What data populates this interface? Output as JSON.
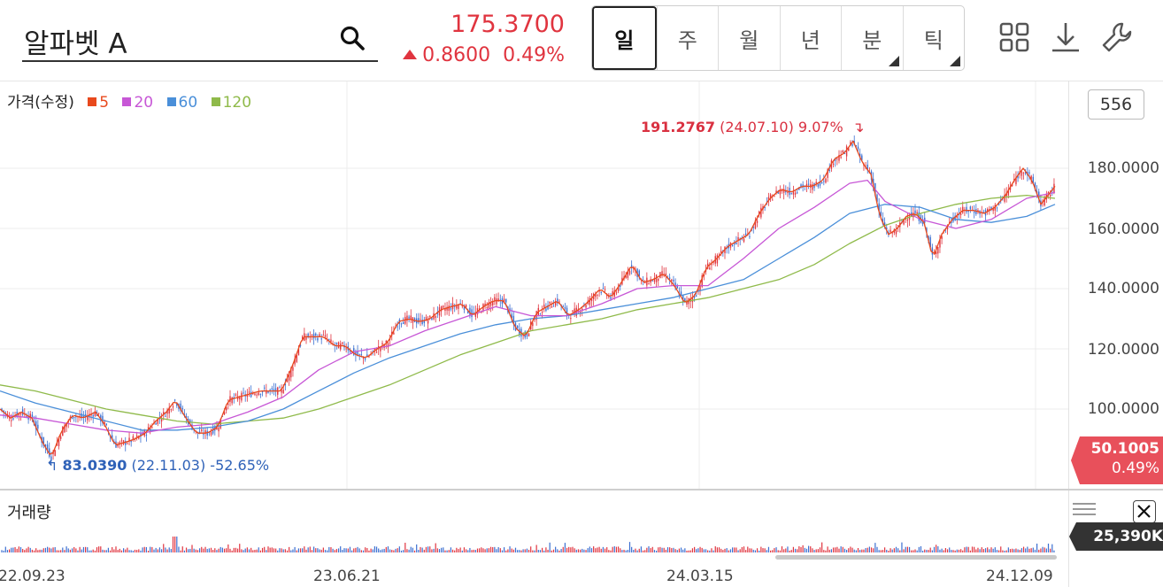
{
  "header": {
    "stock_name": "알파벳 A",
    "price": "175.3700",
    "change": "0.8600",
    "change_pct": "0.49%",
    "up_color": "#e0343f",
    "tabs": [
      {
        "label": "일",
        "active": true,
        "submenu": false
      },
      {
        "label": "주",
        "active": false,
        "submenu": false
      },
      {
        "label": "월",
        "active": false,
        "submenu": false
      },
      {
        "label": "년",
        "active": false,
        "submenu": false
      },
      {
        "label": "분",
        "active": false,
        "submenu": true
      },
      {
        "label": "틱",
        "active": false,
        "submenu": true
      }
    ],
    "tools": [
      "grid-icon",
      "download-icon",
      "wrench-icon"
    ]
  },
  "legend": {
    "title": "가격(수정)",
    "items": [
      {
        "label": "5",
        "color": "#e8491d"
      },
      {
        "label": "20",
        "color": "#c757d6"
      },
      {
        "label": "60",
        "color": "#4a8fd9"
      },
      {
        "label": "120",
        "color": "#8fba4a"
      }
    ]
  },
  "count_box": "556",
  "current": {
    "value": "50.1005",
    "pct": "0.49%",
    "color": "#e8505b"
  },
  "annotations": {
    "high": {
      "value": "191.2767",
      "detail": "(24.07.10) 9.07%"
    },
    "low": {
      "value": "83.0390",
      "detail": "(22.11.03) -52.65%"
    }
  },
  "volume": {
    "label": "거래량",
    "value": "25,390K"
  },
  "chart_data": {
    "type": "candlestick",
    "y_ticks": [
      "180.0000",
      "160.0000",
      "140.0000",
      "120.0000",
      "100.0000"
    ],
    "ylim": [
      88,
      197
    ],
    "x_ticks": [
      "22.09.23",
      "23.06.21",
      "24.03.15",
      "24.12.09"
    ],
    "grid": true,
    "series": [
      {
        "name": "5",
        "color": "#e8491d"
      },
      {
        "name": "20",
        "color": "#c757d6"
      },
      {
        "name": "60",
        "color": "#4a8fd9"
      },
      {
        "name": "120",
        "color": "#8fba4a"
      }
    ],
    "close_curve": [
      [
        0,
        100
      ],
      [
        12,
        97
      ],
      [
        24,
        99
      ],
      [
        36,
        97
      ],
      [
        48,
        89
      ],
      [
        58,
        84
      ],
      [
        70,
        93
      ],
      [
        82,
        98
      ],
      [
        94,
        97
      ],
      [
        108,
        99
      ],
      [
        118,
        95
      ],
      [
        130,
        88
      ],
      [
        142,
        89
      ],
      [
        152,
        90
      ],
      [
        164,
        92
      ],
      [
        176,
        96
      ],
      [
        188,
        99
      ],
      [
        198,
        103
      ],
      [
        210,
        97
      ],
      [
        222,
        92
      ],
      [
        234,
        92
      ],
      [
        246,
        94
      ],
      [
        258,
        103
      ],
      [
        270,
        104
      ],
      [
        282,
        105
      ],
      [
        294,
        106
      ],
      [
        306,
        106
      ],
      [
        318,
        106
      ],
      [
        330,
        114
      ],
      [
        342,
        124
      ],
      [
        354,
        124
      ],
      [
        366,
        124
      ],
      [
        378,
        121
      ],
      [
        390,
        121
      ],
      [
        402,
        118
      ],
      [
        414,
        117
      ],
      [
        426,
        120
      ],
      [
        438,
        122
      ],
      [
        450,
        129
      ],
      [
        462,
        130
      ],
      [
        474,
        129
      ],
      [
        486,
        130
      ],
      [
        498,
        133
      ],
      [
        510,
        134
      ],
      [
        522,
        135
      ],
      [
        534,
        131
      ],
      [
        546,
        134
      ],
      [
        558,
        136
      ],
      [
        570,
        136
      ],
      [
        582,
        127
      ],
      [
        594,
        124
      ],
      [
        606,
        132
      ],
      [
        618,
        134
      ],
      [
        630,
        136
      ],
      [
        642,
        131
      ],
      [
        654,
        133
      ],
      [
        666,
        136
      ],
      [
        678,
        140
      ],
      [
        690,
        137
      ],
      [
        702,
        142
      ],
      [
        714,
        148
      ],
      [
        726,
        142
      ],
      [
        738,
        143
      ],
      [
        750,
        145
      ],
      [
        762,
        141
      ],
      [
        774,
        135
      ],
      [
        786,
        138
      ],
      [
        798,
        147
      ],
      [
        810,
        150
      ],
      [
        822,
        154
      ],
      [
        834,
        156
      ],
      [
        846,
        158
      ],
      [
        858,
        165
      ],
      [
        870,
        170
      ],
      [
        882,
        173
      ],
      [
        894,
        172
      ],
      [
        906,
        174
      ],
      [
        918,
        174
      ],
      [
        930,
        176
      ],
      [
        942,
        183
      ],
      [
        954,
        185
      ],
      [
        964,
        189
      ],
      [
        974,
        182
      ],
      [
        984,
        178
      ],
      [
        994,
        164
      ],
      [
        1004,
        158
      ],
      [
        1014,
        160
      ],
      [
        1024,
        164
      ],
      [
        1034,
        165
      ],
      [
        1044,
        162
      ],
      [
        1054,
        150
      ],
      [
        1064,
        158
      ],
      [
        1076,
        163
      ],
      [
        1088,
        166
      ],
      [
        1100,
        166
      ],
      [
        1112,
        165
      ],
      [
        1124,
        167
      ],
      [
        1136,
        171
      ],
      [
        1146,
        176
      ],
      [
        1156,
        180
      ],
      [
        1166,
        176
      ],
      [
        1176,
        168
      ],
      [
        1184,
        171
      ],
      [
        1192,
        174
      ]
    ],
    "ma20_curve": [
      [
        0,
        98
      ],
      [
        40,
        97
      ],
      [
        80,
        95
      ],
      [
        120,
        93
      ],
      [
        160,
        92
      ],
      [
        200,
        94
      ],
      [
        240,
        95
      ],
      [
        280,
        99
      ],
      [
        320,
        104
      ],
      [
        360,
        113
      ],
      [
        400,
        119
      ],
      [
        440,
        121
      ],
      [
        480,
        126
      ],
      [
        520,
        130
      ],
      [
        560,
        134
      ],
      [
        600,
        131
      ],
      [
        640,
        131
      ],
      [
        680,
        135
      ],
      [
        720,
        140
      ],
      [
        760,
        141
      ],
      [
        800,
        141
      ],
      [
        840,
        150
      ],
      [
        880,
        160
      ],
      [
        920,
        167
      ],
      [
        960,
        175
      ],
      [
        980,
        176
      ],
      [
        1000,
        169
      ],
      [
        1040,
        163
      ],
      [
        1080,
        160
      ],
      [
        1120,
        163
      ],
      [
        1160,
        170
      ],
      [
        1192,
        172
      ]
    ],
    "ma60_curve": [
      [
        0,
        106
      ],
      [
        40,
        102
      ],
      [
        80,
        99
      ],
      [
        120,
        96
      ],
      [
        160,
        93
      ],
      [
        200,
        93
      ],
      [
        240,
        94
      ],
      [
        280,
        96
      ],
      [
        320,
        100
      ],
      [
        360,
        106
      ],
      [
        400,
        112
      ],
      [
        440,
        117
      ],
      [
        480,
        121
      ],
      [
        520,
        125
      ],
      [
        560,
        128
      ],
      [
        600,
        130
      ],
      [
        640,
        131
      ],
      [
        680,
        133
      ],
      [
        720,
        135
      ],
      [
        760,
        137
      ],
      [
        800,
        140
      ],
      [
        840,
        143
      ],
      [
        880,
        150
      ],
      [
        920,
        157
      ],
      [
        960,
        165
      ],
      [
        1000,
        168
      ],
      [
        1040,
        167
      ],
      [
        1080,
        163
      ],
      [
        1120,
        162
      ],
      [
        1160,
        164
      ],
      [
        1192,
        168
      ]
    ],
    "ma120_curve": [
      [
        0,
        108
      ],
      [
        40,
        106
      ],
      [
        80,
        103
      ],
      [
        120,
        100
      ],
      [
        160,
        98
      ],
      [
        200,
        96
      ],
      [
        240,
        95
      ],
      [
        280,
        96
      ],
      [
        320,
        97
      ],
      [
        360,
        100
      ],
      [
        400,
        104
      ],
      [
        440,
        108
      ],
      [
        480,
        113
      ],
      [
        520,
        118
      ],
      [
        560,
        122
      ],
      [
        600,
        126
      ],
      [
        640,
        128
      ],
      [
        680,
        130
      ],
      [
        720,
        133
      ],
      [
        760,
        135
      ],
      [
        800,
        137
      ],
      [
        840,
        140
      ],
      [
        880,
        143
      ],
      [
        920,
        148
      ],
      [
        960,
        155
      ],
      [
        1000,
        161
      ],
      [
        1040,
        165
      ],
      [
        1080,
        168
      ],
      [
        1120,
        170
      ],
      [
        1160,
        171
      ],
      [
        1192,
        170
      ]
    ]
  }
}
